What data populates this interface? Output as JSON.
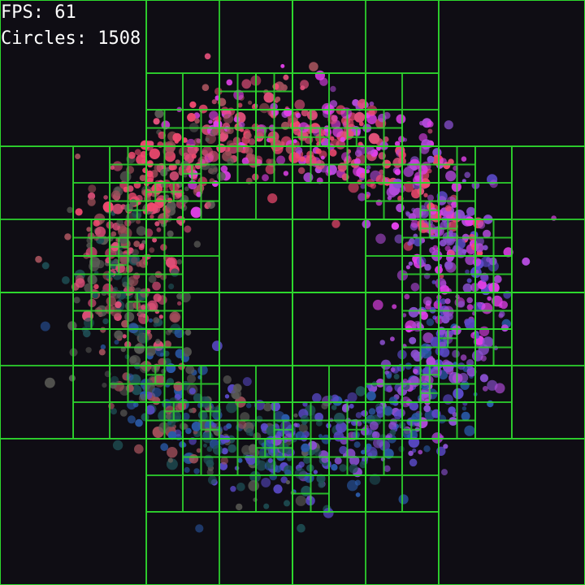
{
  "hud": {
    "fps_label": "FPS:",
    "fps_value": "61",
    "circles_label": "Circles:",
    "circles_value": "1508"
  },
  "colors": {
    "background": "#0f0d14",
    "grid": "#2ed82e",
    "circle_palette": [
      "#e040e8",
      "#b04ad8",
      "#8a50d0",
      "#5a4ac8",
      "#2a5aa8",
      "#1f4f55",
      "#5a5a55",
      "#a0505a",
      "#e0507a",
      "#f04a70"
    ]
  },
  "icons": {
    "scene": "particle-ring-quadtree"
  }
}
